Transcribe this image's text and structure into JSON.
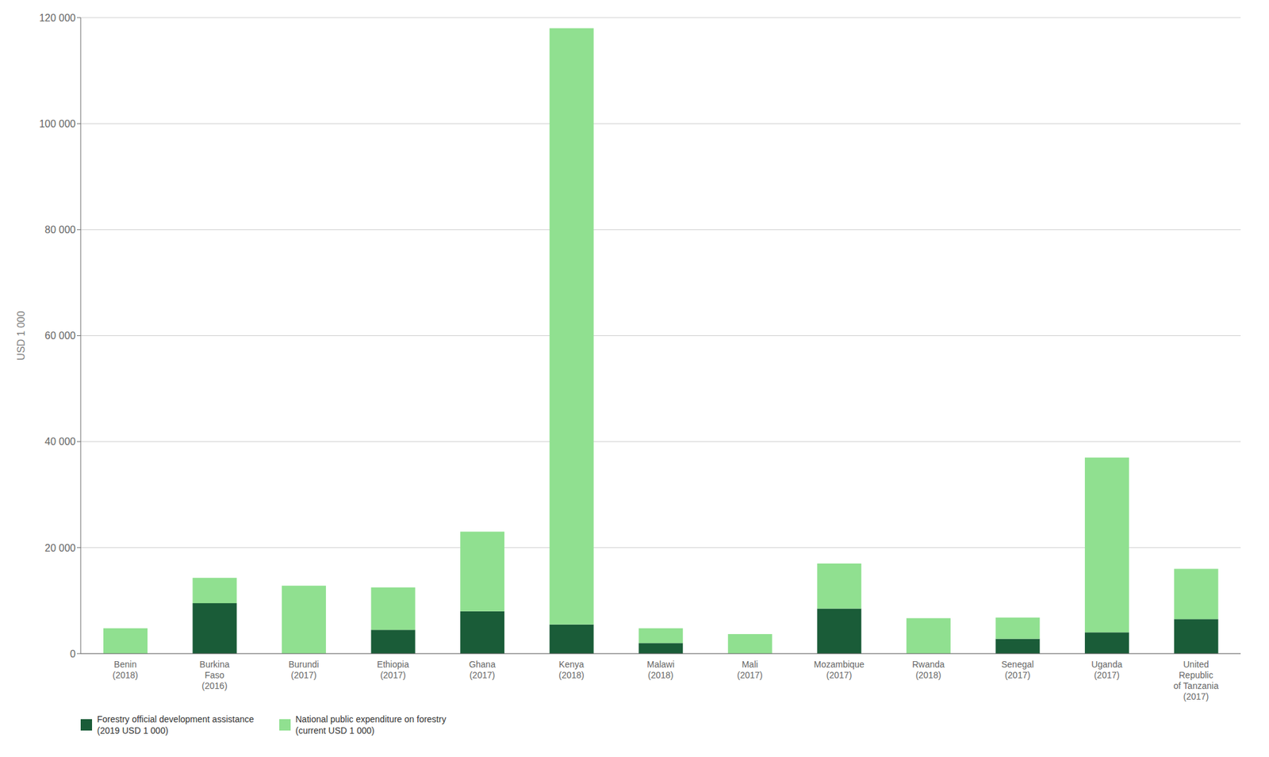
{
  "chart_data": {
    "type": "bar",
    "stacked": true,
    "grid": true,
    "legend": "bottom",
    "ylabel": "USD 1 000",
    "categories": [
      "Benin\n(2018)",
      "Burkina\nFaso\n(2016)",
      "Burundi\n(2017)",
      "Ethiopia\n(2017)",
      "Ghana\n(2017)",
      "Kenya\n(2018)",
      "Malawi\n(2018)",
      "Mali\n(2017)",
      "Mozambique\n(2017)",
      "Rwanda\n(2018)",
      "Senegal\n(2017)",
      "Uganda\n(2017)",
      "United\nRepublic\nof Tanzania\n(2017)"
    ],
    "series": [
      {
        "name": "Forestry official development assistance\n(2019 USD 1 000)",
        "color": "#1a5c38",
        "values": [
          0,
          9500,
          0,
          4500,
          8000,
          5500,
          2000,
          0,
          8500,
          0,
          2800,
          4000,
          6500
        ]
      },
      {
        "name": "National public expenditure on forestry\n(current USD 1 000)",
        "color": "#90e090",
        "values": [
          4800,
          4800,
          12800,
          8000,
          15000,
          112500,
          2800,
          3700,
          8500,
          6700,
          4000,
          33000,
          9500
        ]
      }
    ],
    "ylim": [
      0,
      120000
    ],
    "yticks": [
      0,
      {
        "value": 20000,
        "label": "20 000"
      },
      {
        "value": 40000,
        "label": "40 000"
      },
      {
        "value": 60000,
        "label": "60 000"
      },
      {
        "value": 80000,
        "label": "80 000"
      },
      {
        "value": 100000,
        "label": "100 000"
      },
      {
        "value": 120000,
        "label": "120 000"
      }
    ]
  }
}
